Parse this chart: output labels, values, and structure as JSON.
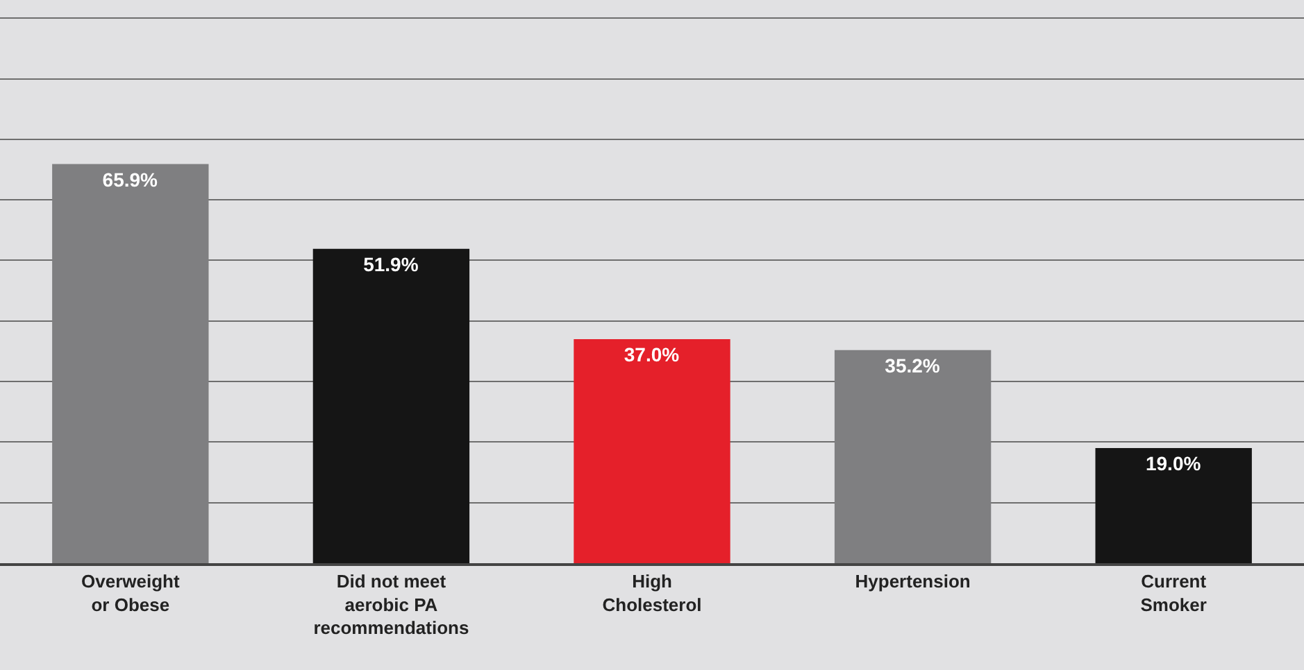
{
  "chart_data": {
    "type": "bar",
    "categories": [
      "Overweight or Obese",
      "Did not meet aerobic PA recommendations",
      "High Cholesterol",
      "Hypertension",
      "Current Smoker"
    ],
    "values": [
      65.9,
      51.9,
      37.0,
      35.2,
      19.0
    ],
    "value_labels": [
      "65.9%",
      "51.9%",
      "37.0%",
      "35.2%",
      "19.0%"
    ],
    "colors": [
      "#7f7f81",
      "#151515",
      "#e5202a",
      "#7f7f81",
      "#151515"
    ],
    "ylim": [
      0,
      93
    ],
    "yticks": [
      {
        "value": 0,
        "label": null
      },
      {
        "value": 10,
        "label": null
      },
      {
        "value": 20,
        "label": null
      },
      {
        "value": 30,
        "label": null
      },
      {
        "value": 40,
        "label": null
      },
      {
        "value": 50,
        "label": null
      },
      {
        "value": 60,
        "label": null
      },
      {
        "value": 70,
        "label": null
      },
      {
        "value": 80,
        "label": null
      },
      {
        "value": 90,
        "label": null
      }
    ],
    "grid": "y",
    "tick_labels": "x"
  }
}
